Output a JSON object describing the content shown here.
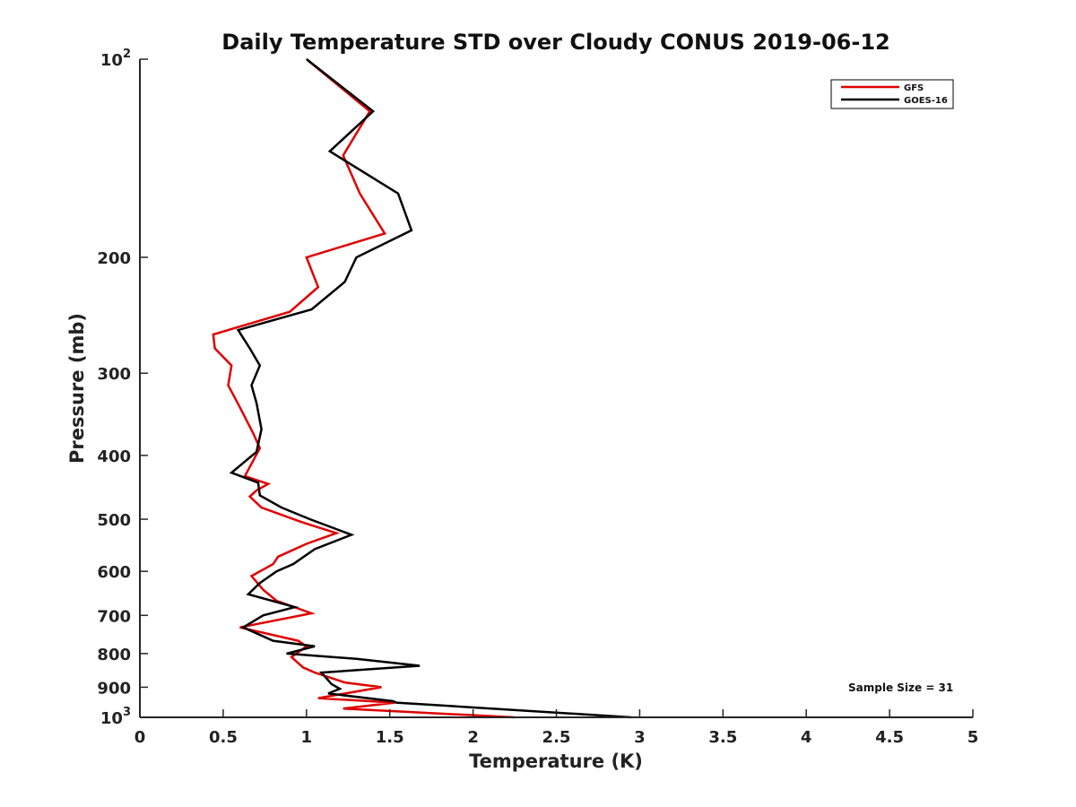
{
  "chart_data": {
    "type": "line",
    "title": "Daily Temperature STD over Cloudy CONUS 2019-06-12",
    "xlabel": "Temperature (K)",
    "ylabel": "Pressure (mb)",
    "xlim": [
      0,
      5
    ],
    "ylim": [
      100,
      1000
    ],
    "y_scale": "log",
    "y_reversed": true,
    "grid": false,
    "legend_position": "top-right",
    "x_ticks": [
      0,
      0.5,
      1,
      1.5,
      2,
      2.5,
      3,
      3.5,
      4,
      4.5,
      5
    ],
    "x_tick_labels": [
      "0",
      "0.5",
      "1",
      "1.5",
      "2",
      "2.5",
      "3",
      "3.5",
      "4",
      "4.5",
      "5"
    ],
    "y_ticks": [
      100,
      200,
      300,
      400,
      500,
      600,
      700,
      800,
      900,
      1000
    ],
    "y_tick_labels": [
      {
        "base": "10",
        "exp": "2"
      },
      {
        "base": "200",
        "exp": ""
      },
      {
        "base": "300",
        "exp": ""
      },
      {
        "base": "400",
        "exp": ""
      },
      {
        "base": "500",
        "exp": ""
      },
      {
        "base": "600",
        "exp": ""
      },
      {
        "base": "700",
        "exp": ""
      },
      {
        "base": "800",
        "exp": ""
      },
      {
        "base": "900",
        "exp": ""
      },
      {
        "base": "10",
        "exp": "3"
      }
    ],
    "annotation": "Sample Size = 31",
    "series": [
      {
        "name": "GFS",
        "color": "#e00000",
        "points": [
          [
            1.0,
            100
          ],
          [
            1.38,
            120
          ],
          [
            1.22,
            140
          ],
          [
            1.32,
            160
          ],
          [
            1.47,
            184
          ],
          [
            1.0,
            200
          ],
          [
            1.07,
            222
          ],
          [
            0.9,
            242
          ],
          [
            0.44,
            262
          ],
          [
            0.45,
            275
          ],
          [
            0.55,
            292
          ],
          [
            0.53,
            313
          ],
          [
            0.6,
            338
          ],
          [
            0.68,
            370
          ],
          [
            0.72,
            390
          ],
          [
            0.63,
            430
          ],
          [
            0.77,
            442
          ],
          [
            0.7,
            452
          ],
          [
            0.66,
            462
          ],
          [
            0.73,
            480
          ],
          [
            0.97,
            505
          ],
          [
            1.18,
            525
          ],
          [
            1.0,
            545
          ],
          [
            0.83,
            570
          ],
          [
            0.8,
            585
          ],
          [
            0.67,
            610
          ],
          [
            0.74,
            640
          ],
          [
            0.82,
            665
          ],
          [
            1.03,
            695
          ],
          [
            0.6,
            730
          ],
          [
            0.95,
            765
          ],
          [
            1.0,
            780
          ],
          [
            0.91,
            810
          ],
          [
            0.98,
            840
          ],
          [
            1.05,
            855
          ],
          [
            1.23,
            885
          ],
          [
            1.45,
            900
          ],
          [
            1.07,
            935
          ],
          [
            1.53,
            950
          ],
          [
            1.22,
            970
          ],
          [
            2.25,
            1000
          ]
        ]
      },
      {
        "name": "GOES-16",
        "color": "#000000",
        "points": [
          [
            1.0,
            100
          ],
          [
            1.4,
            120
          ],
          [
            1.14,
            138
          ],
          [
            1.55,
            160
          ],
          [
            1.63,
            182
          ],
          [
            1.3,
            200
          ],
          [
            1.23,
            218
          ],
          [
            1.03,
            240
          ],
          [
            0.59,
            258
          ],
          [
            0.66,
            275
          ],
          [
            0.72,
            292
          ],
          [
            0.67,
            313
          ],
          [
            0.7,
            333
          ],
          [
            0.73,
            365
          ],
          [
            0.7,
            395
          ],
          [
            0.55,
            425
          ],
          [
            0.71,
            440
          ],
          [
            0.72,
            460
          ],
          [
            0.85,
            480
          ],
          [
            1.02,
            500
          ],
          [
            1.27,
            528
          ],
          [
            1.05,
            555
          ],
          [
            0.92,
            585
          ],
          [
            0.82,
            600
          ],
          [
            0.72,
            625
          ],
          [
            0.65,
            650
          ],
          [
            0.93,
            680
          ],
          [
            0.74,
            700
          ],
          [
            0.62,
            730
          ],
          [
            0.8,
            765
          ],
          [
            1.05,
            780
          ],
          [
            0.88,
            800
          ],
          [
            1.3,
            815
          ],
          [
            1.68,
            835
          ],
          [
            1.09,
            855
          ],
          [
            1.15,
            890
          ],
          [
            1.2,
            905
          ],
          [
            1.13,
            920
          ],
          [
            1.52,
            945
          ],
          [
            1.54,
            950
          ],
          [
            2.95,
            1000
          ]
        ]
      }
    ]
  }
}
